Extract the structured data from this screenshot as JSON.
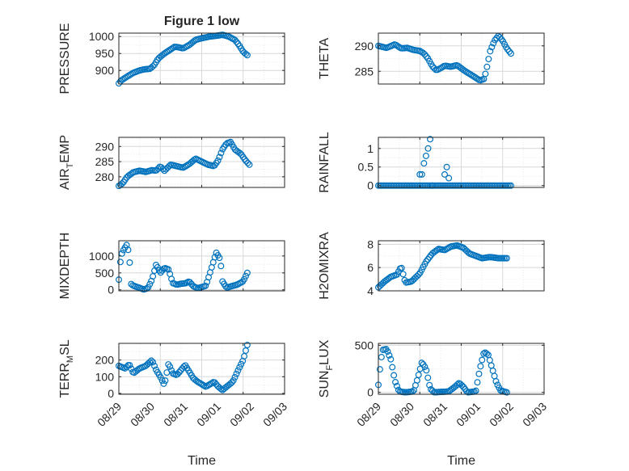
{
  "colors": {
    "marker": "#0072BD",
    "axis": "#262626",
    "grid": "#d9d9d9",
    "minor_grid": "#ececec"
  },
  "chart_data": [
    {
      "id": "pressure",
      "type": "scatter",
      "title": "Figure 1 low",
      "ylabel": "PRESSURE",
      "ylabel_sub": "",
      "ylabel_after": "",
      "xlabel": "",
      "show_x_ticks": false,
      "xlim": [
        0,
        4
      ],
      "ylim": [
        860,
        1010
      ],
      "yticks": [
        900,
        950,
        1000
      ],
      "grid": true,
      "minor_grid": true,
      "x_tick_labels": [
        "08/29",
        "08/30",
        "08/31",
        "09/01",
        "09/02",
        "09/03"
      ],
      "keypoints": [
        [
          0,
          862
        ],
        [
          0.05,
          870
        ],
        [
          0.2,
          882
        ],
        [
          0.35,
          893
        ],
        [
          0.5,
          900
        ],
        [
          0.6,
          903
        ],
        [
          0.75,
          905
        ],
        [
          0.85,
          915
        ],
        [
          0.95,
          935
        ],
        [
          1.1,
          950
        ],
        [
          1.25,
          962
        ],
        [
          1.35,
          970
        ],
        [
          1.45,
          968
        ],
        [
          1.55,
          965
        ],
        [
          1.7,
          975
        ],
        [
          1.85,
          990
        ],
        [
          2.0,
          995
        ],
        [
          2.2,
          1000
        ],
        [
          2.4,
          1003
        ],
        [
          2.5,
          1005
        ],
        [
          2.65,
          1000
        ],
        [
          2.8,
          990
        ],
        [
          2.9,
          975
        ],
        [
          3.0,
          955
        ],
        [
          3.1,
          945
        ]
      ],
      "n_points": 84
    },
    {
      "id": "theta",
      "type": "scatter",
      "title": "",
      "ylabel": "THETA",
      "ylabel_sub": "",
      "ylabel_after": "",
      "xlabel": "",
      "show_x_ticks": false,
      "xlim": [
        0,
        4
      ],
      "ylim": [
        282.5,
        292.5
      ],
      "yticks": [
        285,
        290
      ],
      "grid": true,
      "minor_grid": true,
      "x_tick_labels": [
        "08/29",
        "08/30",
        "08/31",
        "09/01",
        "09/02",
        "09/03"
      ],
      "keypoints": [
        [
          0,
          290
        ],
        [
          0.2,
          289.6
        ],
        [
          0.4,
          290.3
        ],
        [
          0.55,
          289.5
        ],
        [
          0.7,
          289.6
        ],
        [
          0.85,
          289.2
        ],
        [
          1.0,
          289.0
        ],
        [
          1.1,
          288.5
        ],
        [
          1.2,
          287.5
        ],
        [
          1.3,
          286.0
        ],
        [
          1.4,
          285.2
        ],
        [
          1.5,
          285.6
        ],
        [
          1.6,
          286.1
        ],
        [
          1.75,
          285.9
        ],
        [
          1.9,
          286.2
        ],
        [
          2.1,
          285.0
        ],
        [
          2.3,
          284.0
        ],
        [
          2.45,
          283.2
        ],
        [
          2.55,
          283.5
        ],
        [
          2.6,
          285.0
        ],
        [
          2.7,
          289.0
        ],
        [
          2.8,
          291.0
        ],
        [
          2.9,
          292.0
        ],
        [
          3.0,
          291.0
        ],
        [
          3.1,
          289.5
        ],
        [
          3.2,
          288.5
        ]
      ],
      "n_points": 84
    },
    {
      "id": "air-temp",
      "type": "scatter",
      "title": "",
      "ylabel": "AIR",
      "ylabel_sub": "T",
      "ylabel_after": "EMP",
      "xlabel": "",
      "show_x_ticks": false,
      "xlim": [
        0,
        4
      ],
      "ylim": [
        276.5,
        293
      ],
      "yticks": [
        280,
        285,
        290
      ],
      "grid": true,
      "minor_grid": true,
      "x_tick_labels": [
        "08/29",
        "08/30",
        "08/31",
        "09/01",
        "09/02",
        "09/03"
      ],
      "keypoints": [
        [
          0,
          277
        ],
        [
          0.1,
          278
        ],
        [
          0.2,
          280
        ],
        [
          0.35,
          281.5
        ],
        [
          0.5,
          282
        ],
        [
          0.65,
          281.6
        ],
        [
          0.8,
          282.2
        ],
        [
          0.9,
          282.0
        ],
        [
          1.0,
          283.5
        ],
        [
          1.1,
          282.0
        ],
        [
          1.25,
          284.0
        ],
        [
          1.4,
          283.5
        ],
        [
          1.55,
          283.0
        ],
        [
          1.7,
          284.2
        ],
        [
          1.85,
          286.0
        ],
        [
          2.0,
          285.0
        ],
        [
          2.15,
          284.0
        ],
        [
          2.3,
          283.5
        ],
        [
          2.4,
          285.5
        ],
        [
          2.5,
          289.0
        ],
        [
          2.6,
          291.0
        ],
        [
          2.7,
          291.5
        ],
        [
          2.8,
          289.0
        ],
        [
          2.95,
          287.5
        ],
        [
          3.05,
          285.5
        ],
        [
          3.15,
          284.0
        ]
      ],
      "n_points": 84
    },
    {
      "id": "rainfall",
      "type": "scatter",
      "title": "",
      "ylabel": "RAINFALL",
      "ylabel_sub": "",
      "ylabel_after": "",
      "xlabel": "",
      "show_x_ticks": false,
      "xlim": [
        0,
        4
      ],
      "ylim": [
        -0.05,
        1.3
      ],
      "yticks": [
        0,
        0.5,
        1
      ],
      "grid": true,
      "minor_grid": true,
      "x_tick_labels": [
        "08/29",
        "08/30",
        "08/31",
        "09/01",
        "09/02",
        "09/03"
      ],
      "keypoints": [
        [
          0,
          0
        ],
        [
          3.2,
          0
        ]
      ],
      "n_points": 84,
      "extra_points": [
        [
          1.0,
          0.3
        ],
        [
          1.05,
          0.3
        ],
        [
          1.1,
          0.6
        ],
        [
          1.15,
          0.8
        ],
        [
          1.2,
          1.0
        ],
        [
          1.25,
          1.25
        ],
        [
          1.3,
          0
        ],
        [
          1.6,
          0.3
        ],
        [
          1.65,
          0.5
        ],
        [
          1.7,
          0.2
        ]
      ]
    },
    {
      "id": "mixdepth",
      "type": "scatter",
      "title": "",
      "ylabel": "MIXDEPTH",
      "ylabel_sub": "",
      "ylabel_after": "",
      "xlabel": "",
      "show_x_ticks": false,
      "xlim": [
        0,
        4
      ],
      "ylim": [
        -30,
        1450
      ],
      "yticks": [
        0,
        500,
        1000
      ],
      "grid": true,
      "minor_grid": true,
      "x_tick_labels": [
        "08/29",
        "08/30",
        "08/31",
        "09/01",
        "09/02",
        "09/03"
      ],
      "keypoints": [
        [
          0,
          300
        ],
        [
          0.05,
          1000
        ],
        [
          0.1,
          1150
        ],
        [
          0.2,
          1350
        ],
        [
          0.25,
          1000
        ],
        [
          0.3,
          150
        ],
        [
          0.4,
          100
        ],
        [
          0.5,
          60
        ],
        [
          0.6,
          10
        ],
        [
          0.7,
          50
        ],
        [
          0.8,
          300
        ],
        [
          0.9,
          750
        ],
        [
          1.0,
          500
        ],
        [
          1.1,
          650
        ],
        [
          1.2,
          600
        ],
        [
          1.3,
          200
        ],
        [
          1.4,
          150
        ],
        [
          1.5,
          180
        ],
        [
          1.6,
          190
        ],
        [
          1.7,
          250
        ],
        [
          1.8,
          100
        ],
        [
          1.9,
          50
        ],
        [
          2.0,
          80
        ],
        [
          2.1,
          120
        ],
        [
          2.2,
          500
        ],
        [
          2.35,
          1100
        ],
        [
          2.45,
          900
        ],
        [
          2.5,
          250
        ],
        [
          2.6,
          60
        ],
        [
          2.7,
          100
        ],
        [
          2.85,
          150
        ],
        [
          3.0,
          250
        ],
        [
          3.1,
          500
        ]
      ],
      "n_points": 84
    },
    {
      "id": "h2omixra",
      "type": "scatter",
      "title": "",
      "ylabel": "H2OMIXRA",
      "ylabel_sub": "",
      "ylabel_after": "",
      "xlabel": "",
      "show_x_ticks": false,
      "xlim": [
        0,
        4
      ],
      "ylim": [
        4,
        8.3
      ],
      "yticks": [
        4,
        6,
        8
      ],
      "grid": true,
      "minor_grid": true,
      "x_tick_labels": [
        "08/29",
        "08/30",
        "08/31",
        "09/01",
        "09/02",
        "09/03"
      ],
      "keypoints": [
        [
          0,
          4.3
        ],
        [
          0.15,
          4.8
        ],
        [
          0.3,
          5.2
        ],
        [
          0.45,
          5.4
        ],
        [
          0.55,
          6.1
        ],
        [
          0.65,
          4.7
        ],
        [
          0.8,
          4.8
        ],
        [
          1.0,
          5.5
        ],
        [
          1.15,
          6.5
        ],
        [
          1.3,
          7.2
        ],
        [
          1.45,
          7.6
        ],
        [
          1.6,
          7.5
        ],
        [
          1.75,
          7.8
        ],
        [
          1.9,
          7.9
        ],
        [
          2.05,
          7.7
        ],
        [
          2.2,
          7.2
        ],
        [
          2.35,
          7.0
        ],
        [
          2.5,
          6.8
        ],
        [
          2.7,
          6.9
        ],
        [
          2.9,
          6.8
        ],
        [
          3.1,
          6.8
        ]
      ],
      "n_points": 84
    },
    {
      "id": "terr-msl",
      "type": "scatter",
      "title": "",
      "ylabel": "TERR",
      "ylabel_sub": "M",
      "ylabel_after": "SL",
      "xlabel": "Time",
      "show_x_ticks": true,
      "xlim": [
        0,
        4
      ],
      "ylim": [
        -5,
        300
      ],
      "yticks": [
        0,
        100,
        200
      ],
      "grid": true,
      "minor_grid": true,
      "x_tick_labels": [
        "08/29",
        "08/30",
        "08/31",
        "09/01",
        "09/02",
        "09/03"
      ],
      "keypoints": [
        [
          0,
          165
        ],
        [
          0.15,
          150
        ],
        [
          0.25,
          175
        ],
        [
          0.35,
          120
        ],
        [
          0.5,
          150
        ],
        [
          0.65,
          165
        ],
        [
          0.8,
          200
        ],
        [
          0.9,
          140
        ],
        [
          1.0,
          100
        ],
        [
          1.1,
          50
        ],
        [
          1.2,
          180
        ],
        [
          1.3,
          120
        ],
        [
          1.4,
          110
        ],
        [
          1.5,
          140
        ],
        [
          1.6,
          170
        ],
        [
          1.7,
          130
        ],
        [
          1.8,
          90
        ],
        [
          1.9,
          70
        ],
        [
          2.0,
          55
        ],
        [
          2.1,
          40
        ],
        [
          2.2,
          55
        ],
        [
          2.3,
          70
        ],
        [
          2.4,
          40
        ],
        [
          2.5,
          20
        ],
        [
          2.6,
          40
        ],
        [
          2.75,
          70
        ],
        [
          2.9,
          150
        ],
        [
          3.0,
          200
        ],
        [
          3.1,
          290
        ]
      ],
      "n_points": 84
    },
    {
      "id": "sun-flux",
      "type": "scatter",
      "title": "",
      "ylabel": "SUN",
      "ylabel_sub": "F",
      "ylabel_after": "LUX",
      "xlabel": "Time",
      "show_x_ticks": true,
      "xlim": [
        0,
        4
      ],
      "ylim": [
        -20,
        520
      ],
      "yticks": [
        0,
        500
      ],
      "grid": true,
      "minor_grid": true,
      "x_tick_labels": [
        "08/29",
        "08/30",
        "08/31",
        "09/01",
        "09/02",
        "09/03"
      ],
      "keypoints": [
        [
          0,
          80
        ],
        [
          0.05,
          300
        ],
        [
          0.1,
          450
        ],
        [
          0.2,
          460
        ],
        [
          0.3,
          350
        ],
        [
          0.4,
          120
        ],
        [
          0.5,
          10
        ],
        [
          0.65,
          0
        ],
        [
          0.85,
          10
        ],
        [
          0.95,
          150
        ],
        [
          1.05,
          320
        ],
        [
          1.15,
          250
        ],
        [
          1.25,
          40
        ],
        [
          1.35,
          0
        ],
        [
          1.7,
          10
        ],
        [
          1.85,
          60
        ],
        [
          1.95,
          100
        ],
        [
          2.05,
          60
        ],
        [
          2.15,
          0
        ],
        [
          2.35,
          10
        ],
        [
          2.45,
          250
        ],
        [
          2.55,
          430
        ],
        [
          2.65,
          400
        ],
        [
          2.75,
          250
        ],
        [
          2.85,
          100
        ],
        [
          2.95,
          20
        ],
        [
          3.1,
          0
        ]
      ],
      "n_points": 84
    }
  ]
}
